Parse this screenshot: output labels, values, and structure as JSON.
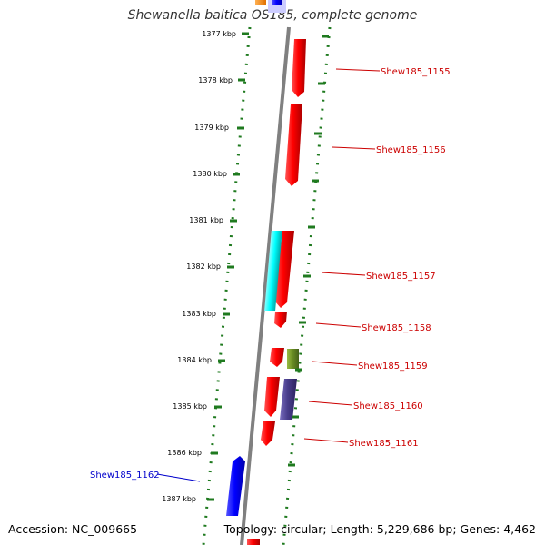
{
  "title": "Shewanella baltica OS185, complete genome",
  "footer": {
    "accession": "Accession: NC_009665",
    "topology": "Topology: circular; Length: 5,229,686 bp; Genes: 4,462"
  },
  "ruler": {
    "unit": "kbp",
    "ticks": [
      "1377 kbp",
      "1378 kbp",
      "1379 kbp",
      "1380 kbp",
      "1381 kbp",
      "1382 kbp",
      "1383 kbp",
      "1384 kbp",
      "1385 kbp",
      "1386 kbp",
      "1387 kbp"
    ]
  },
  "colors": {
    "backbone": "#808080",
    "ruler_dots": "#1f7a1f",
    "label_red": "#cc0000",
    "label_blue": "#0000cc",
    "gene_red": "#ff0000",
    "gene_cyan": "#00ffff",
    "gene_olive": "#6b8e23",
    "gene_slate": "#483d8b",
    "gene_blue": "#0000ff",
    "gene_orange": "#ff8c00"
  },
  "labeled_genes": [
    {
      "name": "Shew185_1155",
      "color": "#cc0000"
    },
    {
      "name": "Shew185_1156",
      "color": "#cc0000"
    },
    {
      "name": "Shew185_1157",
      "color": "#cc0000"
    },
    {
      "name": "Shew185_1158",
      "color": "#cc0000"
    },
    {
      "name": "Shew185_1159",
      "color": "#cc0000"
    },
    {
      "name": "Shew185_1160",
      "color": "#cc0000"
    },
    {
      "name": "Shew185_1161",
      "color": "#cc0000"
    },
    {
      "name": "Shew185_1162",
      "color": "#0000cc"
    }
  ]
}
